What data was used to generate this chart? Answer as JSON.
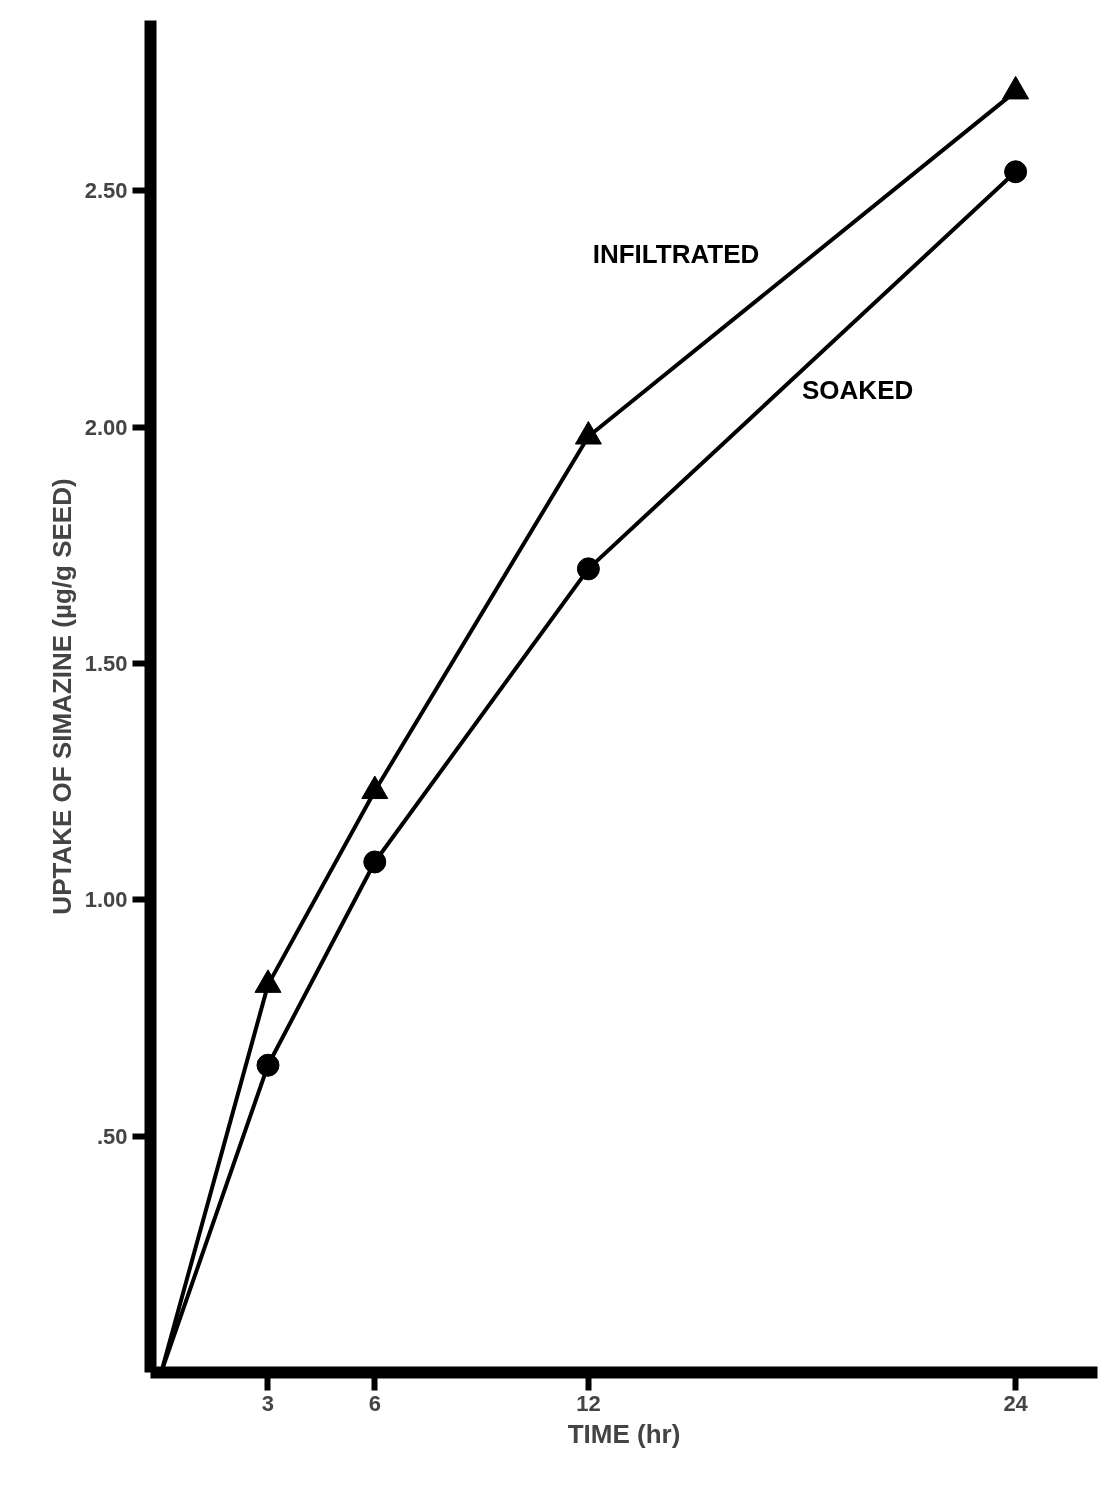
{
  "chart_data": {
    "type": "line",
    "xlabel": "TIME (hr)",
    "ylabel": "UPTAKE OF SIMAZINE (µg/g SEED)",
    "xlim": [
      -0.3,
      26.3
    ],
    "ylim": [
      0,
      2.86
    ],
    "xticks": [
      3,
      6,
      12,
      24
    ],
    "yticks": [
      {
        "value": 0.5,
        "label": ".50"
      },
      {
        "value": 1.0,
        "label": "1.00"
      },
      {
        "value": 1.5,
        "label": "1.50"
      },
      {
        "value": 2.0,
        "label": "2.00"
      },
      {
        "value": 2.5,
        "label": "2.50"
      }
    ],
    "grid": false,
    "legend": false,
    "series": [
      {
        "name": "INFILTRATED",
        "color": "#000000",
        "marker": "triangle",
        "x": [
          0,
          3,
          6,
          12,
          24
        ],
        "values": [
          0,
          0.82,
          1.23,
          1.98,
          2.71
        ]
      },
      {
        "name": "SOAKED",
        "color": "#000000",
        "marker": "circle",
        "x": [
          0,
          3,
          6,
          12,
          24
        ],
        "values": [
          0,
          0.65,
          1.08,
          1.7,
          2.54
        ]
      }
    ]
  }
}
